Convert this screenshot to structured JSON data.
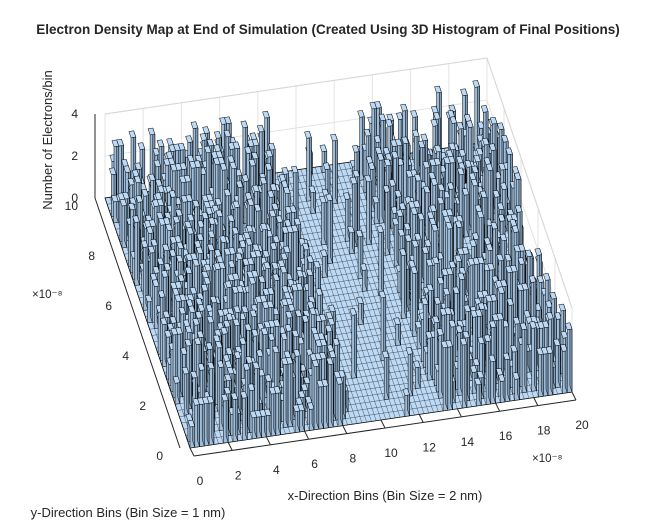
{
  "chart_data": {
    "type": "bar3d",
    "title": "Electron Density Map at End of Simulation (Created Using 3D Histogram of Final Positions)",
    "xlabel": "x-Direction Bins (Bin Size = 2 nm)",
    "ylabel": "y-Direction Bins (Bin Size = 1 nm)",
    "zlabel": "Number of Electrons/bin",
    "x_exponent": "×10⁻⁸",
    "y_exponent": "×10⁻⁸",
    "x_ticks": [
      0,
      2,
      4,
      6,
      8,
      10,
      12,
      14,
      16,
      18,
      20
    ],
    "y_ticks": [
      0,
      2,
      4,
      6,
      8,
      10
    ],
    "z_ticks": [
      0,
      2,
      4
    ],
    "xlim": [
      0,
      20
    ],
    "ylim": [
      0,
      10
    ],
    "zlim": [
      0,
      4
    ],
    "bar_color": "#bcd9f5",
    "edge_color": "#000000",
    "grid": true,
    "bar_regions": [
      {
        "xrange": [
          0,
          8.5
        ],
        "yrange": [
          0,
          10
        ],
        "occupancy": 0.55
      },
      {
        "xrange": [
          13,
          20
        ],
        "yrange": [
          0,
          10
        ],
        "occupancy": 0.35
      },
      {
        "xrange": [
          8.5,
          13
        ],
        "yrange": [
          0,
          10
        ],
        "occupancy": 0.04
      }
    ]
  }
}
